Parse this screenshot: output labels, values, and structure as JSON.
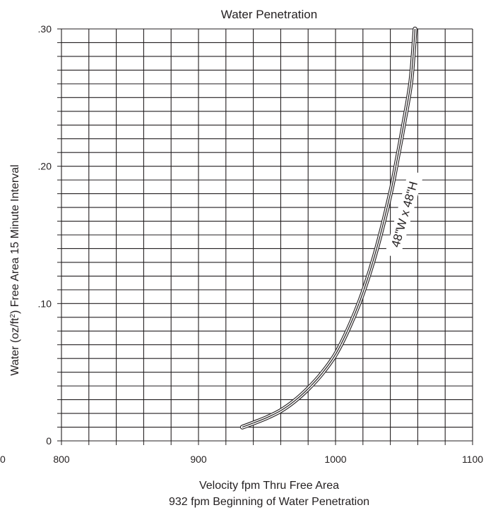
{
  "chart_data": {
    "type": "line",
    "title": "Water Penetration",
    "xlabel": "Velocity fpm Thru Free Area",
    "xlabel_line2": "932 fpm Beginning of Water Penetration",
    "ylabel": "Water (oz/ft²) Free Area 15 Minute Interval",
    "ylabel_main": "Water (oz/ft",
    "ylabel_sup": "2",
    "ylabel_tail": ") Free Area 15 Minute Interval",
    "xlim": [
      800,
      1100
    ],
    "ylim": [
      0,
      0.3
    ],
    "x_tick_labels": [
      "800",
      "900",
      "1000",
      "1100"
    ],
    "x_tick_values": [
      800,
      900,
      1000,
      1100
    ],
    "left_edge_label": "0",
    "y_tick_labels": [
      "0",
      ".10",
      ".20",
      ".30"
    ],
    "y_tick_values": [
      0,
      0.1,
      0.2,
      0.3
    ],
    "grid": true,
    "x_grid_step": 20,
    "y_grid_step": 0.01,
    "series": [
      {
        "name": "48\"W x 48\"H",
        "color": "#231f20",
        "x": [
          932,
          940,
          950,
          960,
          970,
          980,
          990,
          1000,
          1010,
          1020,
          1030,
          1040,
          1045,
          1050,
          1055,
          1058
        ],
        "y": [
          0.01,
          0.013,
          0.017,
          0.022,
          0.029,
          0.038,
          0.049,
          0.063,
          0.083,
          0.108,
          0.14,
          0.18,
          0.205,
          0.232,
          0.262,
          0.3
        ]
      }
    ]
  }
}
